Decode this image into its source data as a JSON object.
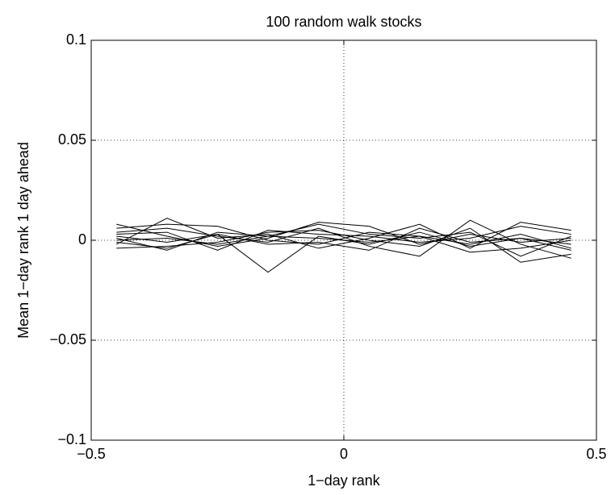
{
  "chart_data": {
    "type": "line",
    "title": "100 random walk stocks",
    "x_label": "1−day rank",
    "y_label": "Mean 1−day rank 1 day ahead",
    "x": [
      -0.45,
      -0.35,
      -0.25,
      -0.15,
      -0.05,
      0.05,
      0.15,
      0.25,
      0.35,
      0.45
    ],
    "series": [
      {
        "color": "#000000",
        "values": [
          0.002,
          -0.001,
          0.003,
          -0.016,
          0.002,
          -0.002,
          0.004,
          -0.003,
          0.001,
          -0.002
        ]
      },
      {
        "color": "#000000",
        "values": [
          0.008,
          0.002,
          -0.003,
          0.001,
          0.009,
          0.007,
          -0.002,
          0.003,
          -0.001,
          0.001
        ]
      },
      {
        "color": "#000000",
        "values": [
          -0.002,
          0.011,
          0.001,
          0.003,
          -0.004,
          0.001,
          0.008,
          -0.004,
          0.009,
          0.005
        ]
      },
      {
        "color": "#000000",
        "values": [
          0.004,
          0.006,
          0.002,
          -0.001,
          0.006,
          -0.003,
          -0.008,
          0.01,
          -0.002,
          -0.009
        ]
      },
      {
        "color": "#000000",
        "values": [
          0.001,
          -0.005,
          0.004,
          0.002,
          0.001,
          -0.001,
          0.002,
          -0.006,
          -0.004,
          0.0
        ]
      },
      {
        "color": "#000000",
        "values": [
          -0.004,
          -0.003,
          -0.001,
          0.004,
          0.005,
          0.0,
          -0.003,
          0.006,
          -0.011,
          -0.007
        ]
      },
      {
        "color": "#000000",
        "values": [
          0.006,
          0.008,
          0.007,
          0.0,
          -0.002,
          0.004,
          0.002,
          -0.002,
          0.003,
          -0.004
        ]
      },
      {
        "color": "#000000",
        "values": [
          0.0,
          0.001,
          -0.002,
          0.002,
          0.008,
          0.003,
          0.001,
          0.004,
          -0.008,
          0.002
        ]
      },
      {
        "color": "#000000",
        "values": [
          -0.001,
          -0.004,
          0.003,
          -0.002,
          -0.001,
          -0.005,
          0.006,
          -0.001,
          0.001,
          -0.005
        ]
      },
      {
        "color": "#000000",
        "values": [
          0.003,
          0.004,
          -0.005,
          0.005,
          0.003,
          0.002,
          -0.001,
          0.001,
          0.007,
          0.003
        ]
      }
    ],
    "xlim": [
      -0.5,
      0.5
    ],
    "xticks": [
      {
        "value": -0.5,
        "label": "−0.5"
      },
      0,
      0.5
    ],
    "ylim": [
      -0.1,
      0.1
    ],
    "yticks": [
      {
        "value": -0.1,
        "label": "−0.1"
      },
      {
        "value": -0.05,
        "label": "−0.05"
      },
      0,
      0.05,
      0.1
    ],
    "grid": true
  }
}
